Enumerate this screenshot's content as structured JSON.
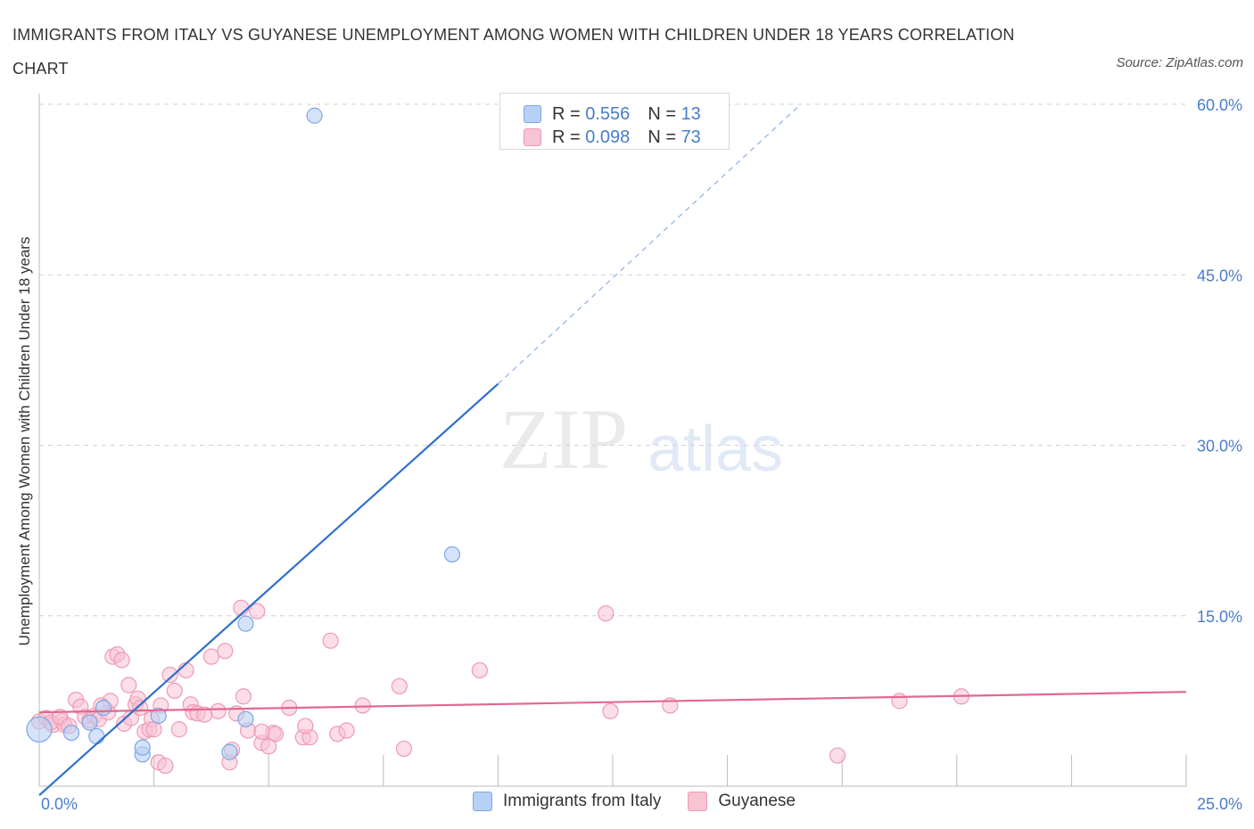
{
  "title": "IMMIGRANTS FROM ITALY VS GUYANESE UNEMPLOYMENT AMONG WOMEN WITH CHILDREN UNDER 18 YEARS CORRELATION CHART",
  "source": "Source: ZipAtlas.com",
  "watermark": {
    "zip": "ZIP",
    "atlas": "atlas"
  },
  "legend": {
    "rows": [
      {
        "r_label": "R =",
        "r_value": "0.556",
        "n_label": "N =",
        "n_value": "13"
      },
      {
        "r_label": "R =",
        "r_value": "0.098",
        "n_label": "N =",
        "n_value": "73"
      }
    ]
  },
  "colors": {
    "italy_fill": "#b7d0f5",
    "italy_stroke": "#7fa6e0",
    "italy_line": "#2f6fd0",
    "guyanese_fill": "#f8c3d3",
    "guyanese_stroke": "#ee9ab4",
    "guyanese_line": "#e0698f",
    "grid": "#d0d0d0",
    "tick_label": "#4a7cc9"
  },
  "chart_data": {
    "type": "scatter",
    "title": "IMMIGRANTS FROM ITALY VS GUYANESE UNEMPLOYMENT AMONG WOMEN WITH CHILDREN UNDER 18 YEARS CORRELATION CHART",
    "xlabel": "",
    "ylabel": "Unemployment Among Women with Children Under 18 years",
    "xlim": [
      0,
      25
    ],
    "ylim": [
      0,
      60
    ],
    "x_tick_labels": [
      "0.0%",
      "25.0%"
    ],
    "y_ticks": [
      15,
      30,
      45,
      60
    ],
    "y_tick_labels": [
      "15.0%",
      "30.0%",
      "45.0%",
      "60.0%"
    ],
    "legend_position": "bottom",
    "series": [
      {
        "name": "Immigrants from Italy",
        "R": 0.556,
        "N": 13,
        "points": [
          [
            0.0,
            5.0
          ],
          [
            0.7,
            4.7
          ],
          [
            1.25,
            4.4
          ],
          [
            1.4,
            6.9
          ],
          [
            2.25,
            2.8
          ],
          [
            2.6,
            6.2
          ],
          [
            4.5,
            14.3
          ],
          [
            4.5,
            5.9
          ],
          [
            9.0,
            20.4
          ],
          [
            6.0,
            59.0
          ],
          [
            2.25,
            3.4
          ],
          [
            1.1,
            5.6
          ],
          [
            4.15,
            3.0
          ]
        ],
        "trend": {
          "x0": 0.0,
          "y0": -0.8,
          "x1": 10.0,
          "y1": 35.4,
          "dash_x1": 16.6,
          "dash_y1": 60.0
        }
      },
      {
        "name": "Guyanese",
        "R": 0.098,
        "N": 73,
        "points": [
          [
            0.0,
            5.7
          ],
          [
            0.15,
            6.0
          ],
          [
            0.3,
            5.4
          ],
          [
            0.5,
            5.7
          ],
          [
            0.55,
            5.4
          ],
          [
            0.8,
            7.6
          ],
          [
            0.9,
            7.0
          ],
          [
            1.0,
            6.1
          ],
          [
            1.1,
            5.8
          ],
          [
            1.2,
            6.2
          ],
          [
            1.3,
            5.9
          ],
          [
            1.5,
            6.5
          ],
          [
            1.55,
            7.5
          ],
          [
            1.6,
            11.4
          ],
          [
            1.7,
            11.6
          ],
          [
            1.8,
            11.1
          ],
          [
            1.85,
            5.5
          ],
          [
            1.95,
            8.9
          ],
          [
            2.0,
            6.0
          ],
          [
            2.1,
            7.2
          ],
          [
            2.15,
            7.7
          ],
          [
            2.2,
            6.9
          ],
          [
            2.3,
            4.8
          ],
          [
            2.4,
            5.0
          ],
          [
            2.45,
            5.9
          ],
          [
            2.5,
            5.0
          ],
          [
            2.6,
            2.1
          ],
          [
            2.65,
            7.1
          ],
          [
            2.75,
            1.8
          ],
          [
            2.85,
            9.8
          ],
          [
            2.95,
            8.4
          ],
          [
            3.05,
            5.0
          ],
          [
            3.2,
            10.2
          ],
          [
            3.3,
            7.2
          ],
          [
            3.35,
            6.5
          ],
          [
            3.45,
            6.4
          ],
          [
            3.75,
            11.4
          ],
          [
            3.9,
            6.6
          ],
          [
            4.05,
            11.9
          ],
          [
            4.15,
            2.1
          ],
          [
            4.2,
            3.2
          ],
          [
            4.3,
            6.4
          ],
          [
            4.4,
            15.7
          ],
          [
            4.45,
            7.9
          ],
          [
            4.55,
            4.9
          ],
          [
            4.75,
            15.4
          ],
          [
            4.85,
            3.8
          ],
          [
            5.0,
            3.5
          ],
          [
            5.1,
            4.7
          ],
          [
            5.15,
            4.6
          ],
          [
            5.45,
            6.9
          ],
          [
            5.75,
            4.3
          ],
          [
            5.9,
            4.3
          ],
          [
            6.35,
            12.8
          ],
          [
            6.5,
            4.6
          ],
          [
            6.7,
            4.9
          ],
          [
            7.05,
            7.1
          ],
          [
            7.85,
            8.8
          ],
          [
            7.95,
            3.3
          ],
          [
            9.6,
            10.2
          ],
          [
            12.35,
            15.2
          ],
          [
            12.45,
            6.6
          ],
          [
            13.75,
            7.1
          ],
          [
            17.4,
            2.7
          ],
          [
            18.75,
            7.5
          ],
          [
            20.1,
            7.9
          ],
          [
            0.25,
            5.6
          ],
          [
            0.45,
            6.1
          ],
          [
            0.65,
            5.3
          ],
          [
            1.35,
            7.1
          ],
          [
            3.6,
            6.3
          ],
          [
            4.85,
            4.8
          ],
          [
            5.8,
            5.3
          ]
        ],
        "trend": {
          "x0": 0.0,
          "y0": 6.5,
          "x1": 25.0,
          "y1": 8.3
        }
      }
    ]
  }
}
